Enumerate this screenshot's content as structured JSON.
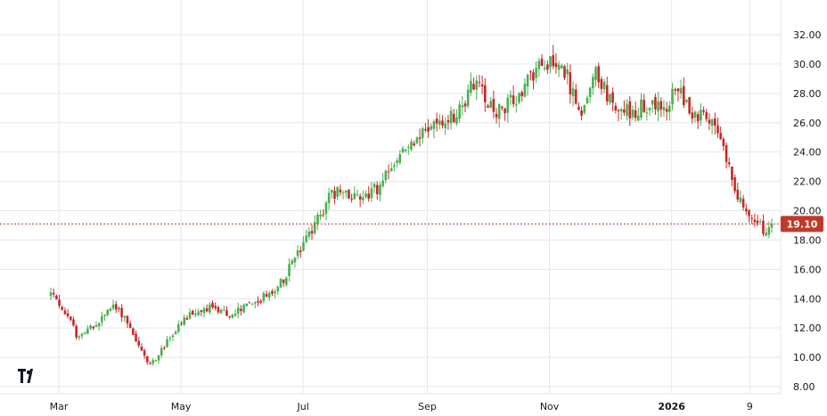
{
  "chart_data": {
    "type": "candlestick",
    "x_labels": [
      {
        "label": "Mar",
        "date": "2025-03-01",
        "bold": false
      },
      {
        "label": "May",
        "date": "2025-05-01",
        "bold": false
      },
      {
        "label": "Jul",
        "date": "2025-07-01",
        "bold": false
      },
      {
        "label": "Sep",
        "date": "2025-09-01",
        "bold": false
      },
      {
        "label": "Nov",
        "date": "2025-11-01",
        "bold": false
      },
      {
        "label": "2026",
        "date": "2026-01-01",
        "bold": true
      },
      {
        "label": "9",
        "date": "2026-02-09",
        "bold": false
      }
    ],
    "y_ticks": [
      "8.00",
      "10.00",
      "12.00",
      "14.00",
      "16.00",
      "18.00",
      "20.00",
      "22.00",
      "24.00",
      "26.00",
      "28.00",
      "30.00",
      "32.00"
    ],
    "ylim": [
      7.4,
      33.6
    ],
    "grid": true,
    "current_price": "19.10",
    "colors": {
      "up": "#26a69a",
      "down": "#ef5350",
      "up_fill": "#4caf50",
      "down_fill": "#c62828",
      "price_line": "#c0392b",
      "grid": "#e3e6eb"
    },
    "trend_points": [
      [
        "2025-02-25",
        14.3
      ],
      [
        "2025-03-01",
        13.8
      ],
      [
        "2025-03-10",
        11.5
      ],
      [
        "2025-03-18",
        12.0
      ],
      [
        "2025-03-28",
        13.5
      ],
      [
        "2025-04-03",
        12.8
      ],
      [
        "2025-04-10",
        10.8
      ],
      [
        "2025-04-15",
        9.4
      ],
      [
        "2025-04-22",
        10.6
      ],
      [
        "2025-04-28",
        11.8
      ],
      [
        "2025-05-05",
        12.8
      ],
      [
        "2025-05-15",
        13.4
      ],
      [
        "2025-05-25",
        12.9
      ],
      [
        "2025-06-05",
        13.6
      ],
      [
        "2025-06-18",
        14.6
      ],
      [
        "2025-06-28",
        17.0
      ],
      [
        "2025-07-05",
        18.5
      ],
      [
        "2025-07-15",
        21.2
      ],
      [
        "2025-07-28",
        21.0
      ],
      [
        "2025-08-08",
        21.5
      ],
      [
        "2025-08-18",
        23.8
      ],
      [
        "2025-08-28",
        25.2
      ],
      [
        "2025-09-05",
        25.8
      ],
      [
        "2025-09-15",
        26.6
      ],
      [
        "2025-09-25",
        28.8
      ],
      [
        "2025-10-05",
        26.8
      ],
      [
        "2025-10-15",
        27.5
      ],
      [
        "2025-10-25",
        29.5
      ],
      [
        "2025-11-02",
        30.5
      ],
      [
        "2025-11-08",
        29.8
      ],
      [
        "2025-11-16",
        26.5
      ],
      [
        "2025-11-25",
        29.5
      ],
      [
        "2025-12-02",
        27.2
      ],
      [
        "2025-12-12",
        26.8
      ],
      [
        "2025-12-22",
        27.2
      ],
      [
        "2025-12-30",
        26.6
      ],
      [
        "2026-01-03",
        28.8
      ],
      [
        "2026-01-10",
        27.0
      ],
      [
        "2026-01-20",
        26.0
      ],
      [
        "2026-01-27",
        24.2
      ],
      [
        "2026-02-02",
        21.5
      ],
      [
        "2026-02-09",
        19.4
      ],
      [
        "2026-02-16",
        18.8
      ],
      [
        "2026-02-20",
        19.1
      ]
    ],
    "x_start": "2025-02-25",
    "x_end": "2026-02-20",
    "candle_count": 255
  }
}
